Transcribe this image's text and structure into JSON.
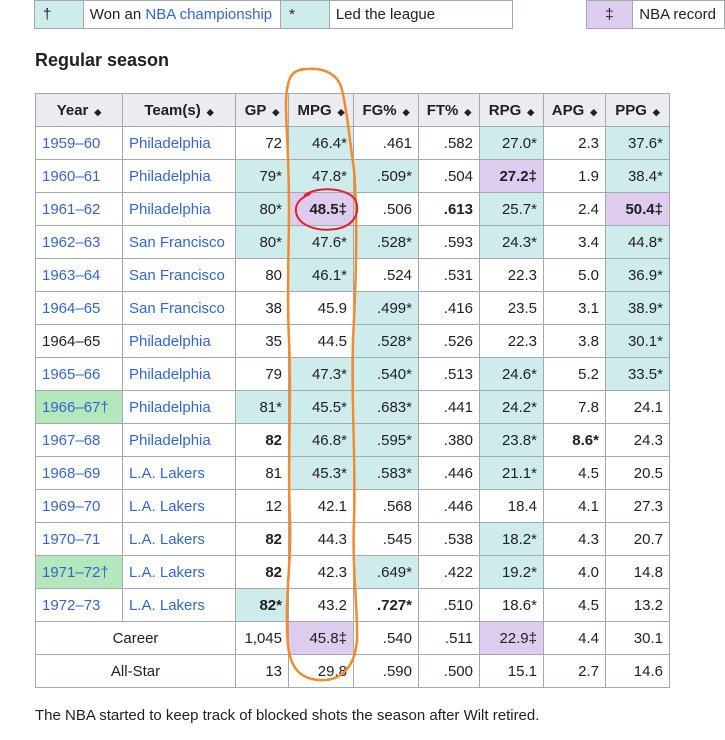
{
  "legend": {
    "champ_symbol": "†",
    "champ_pre": "Won an ",
    "champ_link": "NBA championship",
    "lead_symbol": "*",
    "lead_text": "Led the league",
    "record_symbol": "‡",
    "record_text": "NBA record"
  },
  "section_title": "Regular season",
  "columns": [
    "Year",
    "Team(s)",
    "GP",
    "MPG",
    "FG%",
    "FT%",
    "RPG",
    "APG",
    "PPG"
  ],
  "rows": [
    {
      "year": "1959–60",
      "team": "Philadelphia",
      "gp": "72",
      "mpg": "46.4*",
      "fg": ".461",
      "ft": ".582",
      "rpg": "27.0*",
      "apg": "2.3",
      "ppg": "37.6*"
    },
    {
      "year": "1960–61",
      "team": "Philadelphia",
      "gp": "79*",
      "mpg": "47.8*",
      "fg": ".509*",
      "ft": ".504",
      "rpg": "27.2‡",
      "apg": "1.9",
      "ppg": "38.4*"
    },
    {
      "year": "1961–62",
      "team": "Philadelphia",
      "gp": "80*",
      "mpg": "48.5‡",
      "fg": ".506",
      "ft": ".613",
      "rpg": "25.7*",
      "apg": "2.4",
      "ppg": "50.4‡"
    },
    {
      "year": "1962–63",
      "team": "San Francisco",
      "gp": "80*",
      "mpg": "47.6*",
      "fg": ".528*",
      "ft": ".593",
      "rpg": "24.3*",
      "apg": "3.4",
      "ppg": "44.8*"
    },
    {
      "year": "1963–64",
      "team": "San Francisco",
      "gp": "80",
      "mpg": "46.1*",
      "fg": ".524",
      "ft": ".531",
      "rpg": "22.3",
      "apg": "5.0",
      "ppg": "36.9*"
    },
    {
      "year": "1964–65",
      "team": "San Francisco",
      "gp": "38",
      "mpg": "45.9",
      "fg": ".499*",
      "ft": ".416",
      "rpg": "23.5",
      "apg": "3.1",
      "ppg": "38.9*"
    },
    {
      "year": "1964–65",
      "team": "Philadelphia",
      "gp": "35",
      "mpg": "44.5",
      "fg": ".528*",
      "ft": ".526",
      "rpg": "22.3",
      "apg": "3.8",
      "ppg": "30.1*"
    },
    {
      "year": "1965–66",
      "team": "Philadelphia",
      "gp": "79",
      "mpg": "47.3*",
      "fg": ".540*",
      "ft": ".513",
      "rpg": "24.6*",
      "apg": "5.2",
      "ppg": "33.5*"
    },
    {
      "year": "1966–67†",
      "team": "Philadelphia",
      "gp": "81*",
      "mpg": "45.5*",
      "fg": ".683*",
      "ft": ".441",
      "rpg": "24.2*",
      "apg": "7.8",
      "ppg": "24.1"
    },
    {
      "year": "1967–68",
      "team": "Philadelphia",
      "gp": "82",
      "mpg": "46.8*",
      "fg": ".595*",
      "ft": ".380",
      "rpg": "23.8*",
      "apg": "8.6*",
      "ppg": "24.3"
    },
    {
      "year": "1968–69",
      "team": "L.A. Lakers",
      "gp": "81",
      "mpg": "45.3*",
      "fg": ".583*",
      "ft": ".446",
      "rpg": "21.1*",
      "apg": "4.5",
      "ppg": "20.5"
    },
    {
      "year": "1969–70",
      "team": "L.A. Lakers",
      "gp": "12",
      "mpg": "42.1",
      "fg": ".568",
      "ft": ".446",
      "rpg": "18.4",
      "apg": "4.1",
      "ppg": "27.3"
    },
    {
      "year": "1970–71",
      "team": "L.A. Lakers",
      "gp": "82",
      "mpg": "44.3",
      "fg": ".545",
      "ft": ".538",
      "rpg": "18.2*",
      "apg": "4.3",
      "ppg": "20.7"
    },
    {
      "year": "1971–72†",
      "team": "L.A. Lakers",
      "gp": "82",
      "mpg": "42.3",
      "fg": ".649*",
      "ft": ".422",
      "rpg": "19.2*",
      "apg": "4.0",
      "ppg": "14.8"
    },
    {
      "year": "1972–73",
      "team": "L.A. Lakers",
      "gp": "82*",
      "mpg": "43.2",
      "fg": ".727*",
      "ft": ".510",
      "rpg": "18.6*",
      "apg": "4.5",
      "ppg": "13.2"
    }
  ],
  "career": {
    "label": "Career",
    "gp": "1,045",
    "mpg": "45.8‡",
    "fg": ".540",
    "ft": ".511",
    "rpg": "22.9‡",
    "apg": "4.4",
    "ppg": "30.1"
  },
  "allstar": {
    "label": "All-Star",
    "gp": "13",
    "mpg": "29.8",
    "fg": ".590",
    "ft": ".500",
    "rpg": "15.1",
    "apg": "2.7",
    "ppg": "14.6"
  },
  "footnote": "The NBA started to keep track of blocked shots the season after Wilt retired.",
  "colors": {
    "lead": "#cfecec",
    "record": "#ddccee",
    "champion": "#b4e8bc",
    "annot_orange": "#f28a2e",
    "annot_red": "#e0202a"
  }
}
